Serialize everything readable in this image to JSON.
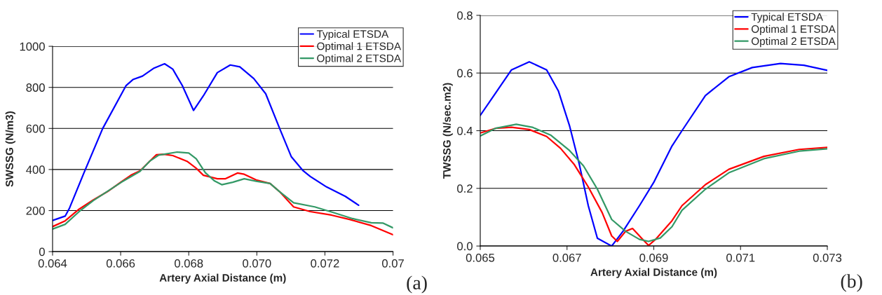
{
  "chart_data": [
    {
      "type": "line",
      "xlabel": "Artery Axial Distance (m)",
      "ylabel": "SWSSG (N/m3)",
      "annotations": [
        "(a)"
      ],
      "xlim": [
        0.064,
        0.074
      ],
      "xticks": [
        0.064,
        0.066,
        0.068,
        {
          "value": 0.07,
          "label": "0.070"
        },
        0.072,
        {
          "value": 0.074,
          "label": "0.07"
        }
      ],
      "ylim": [
        0,
        1000
      ],
      "yticks": [
        0,
        200,
        400,
        600,
        800,
        1000
      ],
      "grid": "y",
      "legend": "top right",
      "series": [
        {
          "name": "Typical ETSDA",
          "color": "#0000ff",
          "x": [
            0.064,
            0.06437,
            0.0645,
            0.06492,
            0.06547,
            0.06616,
            0.06636,
            0.06664,
            0.06698,
            0.06729,
            0.06753,
            0.06781,
            0.06814,
            0.06843,
            0.06884,
            0.06922,
            0.0695,
            0.06991,
            0.07026,
            0.07067,
            0.07101,
            0.07136,
            0.07157,
            0.07205,
            0.0726,
            0.07299
          ],
          "values": [
            152,
            173,
            213,
            383,
            599,
            809,
            838,
            855,
            894,
            915,
            889,
            809,
            688,
            759,
            872,
            909,
            900,
            843,
            769,
            600,
            463,
            394,
            366,
            315,
            269,
            226
          ]
        },
        {
          "name": "Optimal 1 ETSDA",
          "color": "#ff0000",
          "x": [
            0.064,
            0.06437,
            0.06478,
            0.0652,
            0.06561,
            0.06602,
            0.0663,
            0.06657,
            0.06685,
            0.06705,
            0.06726,
            0.06753,
            0.06795,
            0.06822,
            0.06843,
            0.06884,
            0.06908,
            0.06943,
            0.06963,
            0.06998,
            0.07039,
            0.07067,
            0.07108,
            0.07157,
            0.07219,
            0.07274,
            0.07336,
            0.074
          ],
          "values": [
            122,
            150,
            207,
            252,
            292,
            340,
            372,
            394,
            440,
            472,
            474,
            468,
            440,
            406,
            372,
            355,
            355,
            383,
            377,
            349,
            332,
            292,
            218,
            195,
            178,
            156,
            127,
            82
          ]
        },
        {
          "name": "Optimal 2 ETSDA",
          "color": "#339966",
          "x": [
            0.064,
            0.06437,
            0.06478,
            0.0652,
            0.06602,
            0.06657,
            0.06685,
            0.06712,
            0.06766,
            0.068,
            0.06822,
            0.06849,
            0.06876,
            0.06897,
            0.06929,
            0.06963,
            0.06998,
            0.07039,
            0.07067,
            0.07108,
            0.0717,
            0.07226,
            0.07281,
            0.07336,
            0.07371,
            0.074
          ],
          "values": [
            110,
            133,
            195,
            249,
            338,
            391,
            440,
            470,
            485,
            480,
            452,
            384,
            344,
            326,
            338,
            355,
            343,
            332,
            292,
            238,
            218,
            190,
            161,
            141,
            139,
            116
          ]
        }
      ]
    },
    {
      "type": "line",
      "xlabel": "Artery Axial Distance (m)",
      "ylabel": "TWSSG (N/sec.m2)",
      "annotations": [
        "(b)"
      ],
      "xlim": [
        0.065,
        0.073
      ],
      "xticks": [
        0.065,
        0.067,
        0.069,
        0.071,
        0.073
      ],
      "ylim": [
        0,
        0.8
      ],
      "yticks": [
        {
          "value": 0,
          "label": "0.0"
        },
        0.2,
        0.4,
        0.6,
        0.8
      ],
      "grid": "y",
      "legend": "top right",
      "series": [
        {
          "name": "Typical ETSDA",
          "color": "#0000ff",
          "x": [
            0.065,
            0.06535,
            0.06572,
            0.06613,
            0.06653,
            0.0668,
            0.06706,
            0.06728,
            0.06749,
            0.0677,
            0.06803,
            0.06829,
            0.06867,
            0.069,
            0.06942,
            0.06965,
            0.07019,
            0.07073,
            0.07127,
            0.07192,
            0.07246,
            0.073
          ],
          "values": [
            0.453,
            0.53,
            0.611,
            0.639,
            0.611,
            0.538,
            0.416,
            0.286,
            0.14,
            0.027,
            0.0,
            0.051,
            0.14,
            0.221,
            0.347,
            0.4,
            0.522,
            0.587,
            0.619,
            0.633,
            0.627,
            0.609
          ]
        },
        {
          "name": "Optimal 1 ETSDA",
          "color": "#ff0000",
          "x": [
            0.065,
            0.06535,
            0.06572,
            0.06613,
            0.06653,
            0.06685,
            0.06717,
            0.06749,
            0.06781,
            0.06803,
            0.06816,
            0.06835,
            0.06851,
            0.06872,
            0.06888,
            0.06904,
            0.06942,
            0.06965,
            0.07019,
            0.07073,
            0.07154,
            0.07235,
            0.073
          ],
          "values": [
            0.392,
            0.408,
            0.412,
            0.404,
            0.38,
            0.339,
            0.282,
            0.205,
            0.116,
            0.035,
            0.016,
            0.051,
            0.061,
            0.027,
            0.002,
            0.023,
            0.088,
            0.14,
            0.213,
            0.266,
            0.311,
            0.335,
            0.342
          ]
        },
        {
          "name": "Optimal 2 ETSDA",
          "color": "#339966",
          "x": [
            0.065,
            0.06535,
            0.06583,
            0.0662,
            0.06663,
            0.06706,
            0.06738,
            0.0677,
            0.06803,
            0.06835,
            0.06867,
            0.06888,
            0.06915,
            0.06942,
            0.06965,
            0.07019,
            0.07073,
            0.07154,
            0.07235,
            0.073
          ],
          "values": [
            0.382,
            0.408,
            0.422,
            0.412,
            0.384,
            0.331,
            0.278,
            0.197,
            0.092,
            0.051,
            0.023,
            0.016,
            0.028,
            0.067,
            0.124,
            0.197,
            0.254,
            0.303,
            0.329,
            0.337
          ]
        }
      ]
    }
  ]
}
